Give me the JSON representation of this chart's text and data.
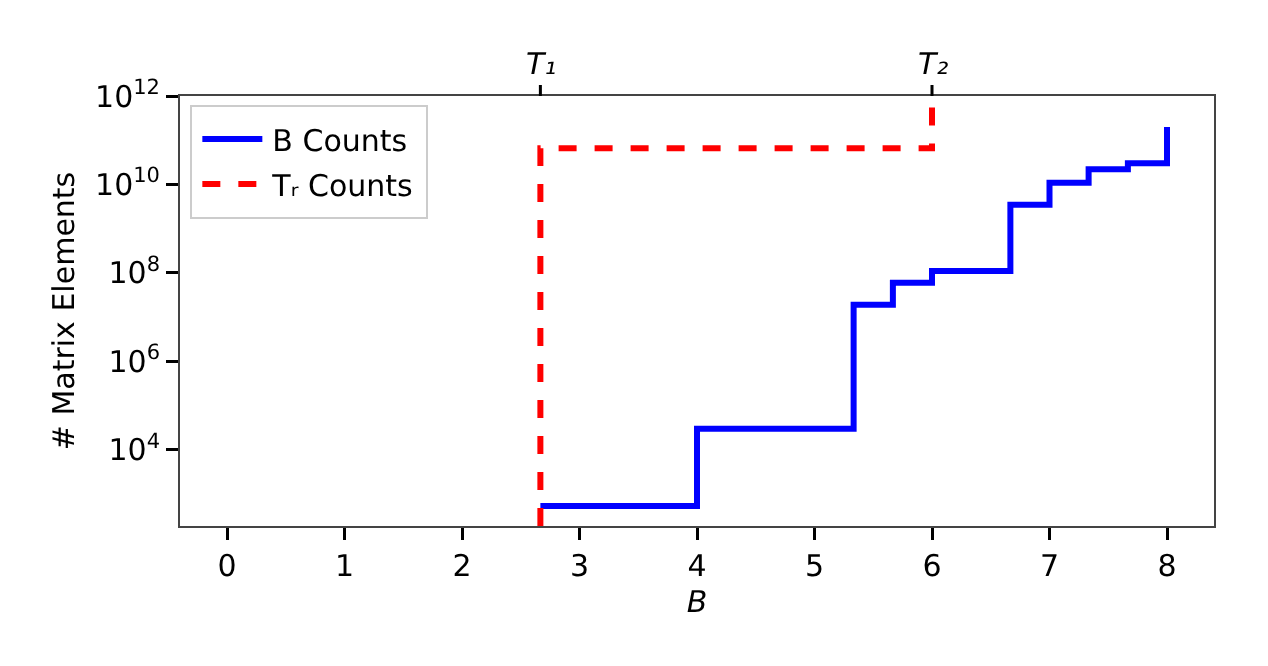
{
  "chart_data": {
    "type": "step",
    "xlabel": "B",
    "ylabel": "# Matrix Elements",
    "xlim": [
      -0.4,
      8.4
    ],
    "xticks": [
      0,
      1,
      2,
      3,
      4,
      5,
      6,
      7,
      8
    ],
    "annotations": [
      {
        "text": "T₁",
        "x": 2.667
      },
      {
        "text": "T₂",
        "x": 6
      }
    ],
    "ylim": [
      190,
      1000000000000
    ],
    "log": "y",
    "yticks": [
      {
        "value": 10000,
        "label": "10$^{4}$"
      },
      {
        "value": 1000000,
        "label": "10$^{6}$"
      },
      {
        "value": 100000000,
        "label": "10$^{8}$"
      },
      {
        "value": 10000000000,
        "label": "10$^{10}$"
      },
      {
        "value": 1000000000000,
        "label": "10$^{12}$"
      }
    ],
    "series": [
      {
        "name": "B Counts",
        "color": "#0000ff",
        "line_style": "solid",
        "x": [
          2.667,
          4,
          5.333,
          5.667,
          6,
          6.667,
          7,
          7.333,
          7.667,
          8,
          8
        ],
        "values": [
          540,
          30000,
          19000000,
          60000000,
          110000000,
          3500000000,
          11000000000,
          22000000000,
          30000000000,
          30000000000,
          200000000000
        ]
      },
      {
        "name": "Tᵣ Counts",
        "color": "#ff0000",
        "line_style": "dashed",
        "x": [
          2.667,
          2.667,
          6,
          6
        ],
        "values": [
          190,
          66000000000,
          66000000000,
          1000000000000
        ]
      }
    ],
    "grid": false,
    "legend": "top left",
    "marker": "none"
  }
}
